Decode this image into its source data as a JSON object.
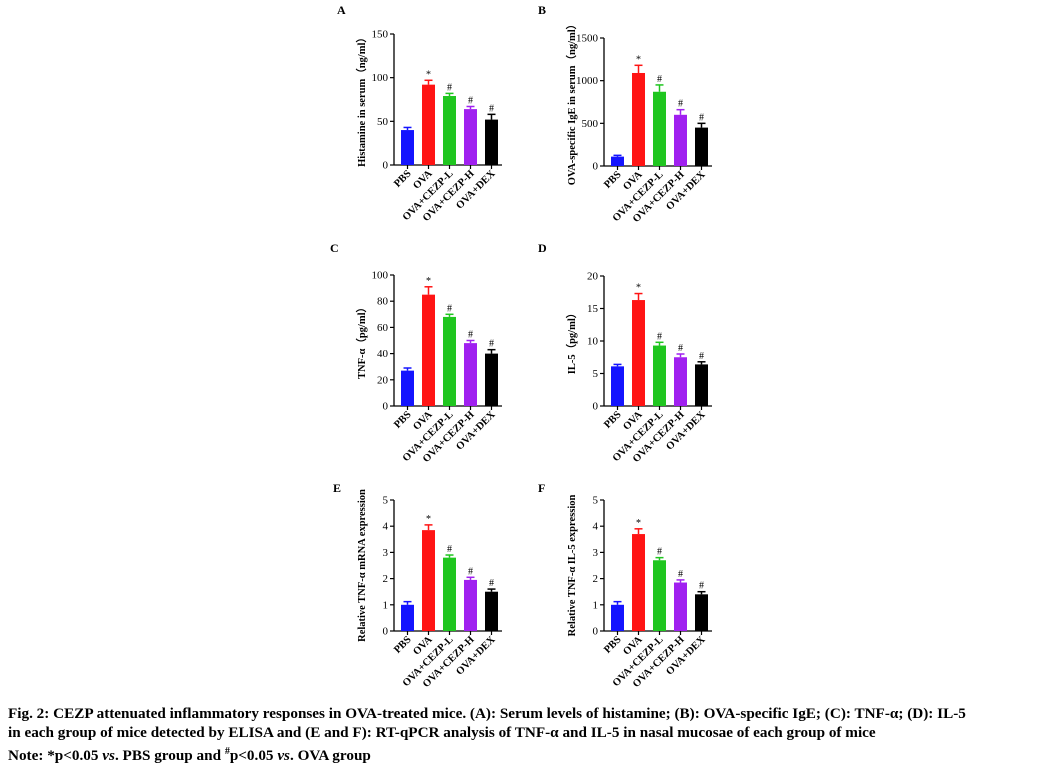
{
  "categories": [
    "PBS",
    "OVA",
    "OVA+CEZP-L",
    "OVA+CEZP-H",
    "OVA+DEX"
  ],
  "colors": [
    "#1414ff",
    "#ff1414",
    "#1fc61f",
    "#a020f0",
    "#000000"
  ],
  "chart_data": [
    {
      "panel": "A",
      "type": "bar",
      "ylabel": "Histamine in serum（ng/ml）",
      "categories": [
        "PBS",
        "OVA",
        "OVA+CEZP-L",
        "OVA+CEZP-H",
        "OVA+DEX"
      ],
      "values": [
        40,
        92,
        79,
        64,
        52
      ],
      "errors": [
        3,
        5,
        3,
        3,
        6
      ],
      "marks": [
        "",
        "*",
        "#",
        "#",
        "#"
      ],
      "ylim": [
        0,
        150
      ],
      "ticks": [
        0,
        50,
        100,
        150
      ]
    },
    {
      "panel": "B",
      "type": "bar",
      "ylabel": "OVA-specific IgE in serum（ng/ml）",
      "categories": [
        "PBS",
        "OVA",
        "OVA+CEZP-L",
        "OVA+CEZP-H",
        "OVA+DEX"
      ],
      "values": [
        110,
        1090,
        870,
        600,
        450
      ],
      "errors": [
        15,
        90,
        80,
        60,
        50
      ],
      "marks": [
        "",
        "*",
        "#",
        "#",
        "#"
      ],
      "ylim": [
        0,
        1500
      ],
      "ticks": [
        0,
        500,
        1000,
        1500
      ]
    },
    {
      "panel": "C",
      "type": "bar",
      "ylabel": "TNF-α（pg/ml）",
      "categories": [
        "PBS",
        "OVA",
        "OVA+CEZP-L",
        "OVA+CEZP-H",
        "OVA+DEX"
      ],
      "values": [
        27,
        85,
        68,
        48,
        40
      ],
      "errors": [
        2,
        6,
        2,
        2,
        3
      ],
      "marks": [
        "",
        "*",
        "#",
        "#",
        "#"
      ],
      "ylim": [
        0,
        100
      ],
      "ticks": [
        0,
        20,
        40,
        60,
        80,
        100
      ]
    },
    {
      "panel": "D",
      "type": "bar",
      "ylabel": "IL-5（pg/ml）",
      "categories": [
        "PBS",
        "OVA",
        "OVA+CEZP-L",
        "OVA+CEZP-H",
        "OVA+DEX"
      ],
      "values": [
        6.1,
        16.3,
        9.3,
        7.5,
        6.4
      ],
      "errors": [
        0.3,
        1.0,
        0.5,
        0.5,
        0.4
      ],
      "marks": [
        "",
        "*",
        "#",
        "#",
        "#"
      ],
      "ylim": [
        0,
        20
      ],
      "ticks": [
        0,
        5,
        10,
        15,
        20
      ]
    },
    {
      "panel": "E",
      "type": "bar",
      "ylabel": "Relative  TNF-α mRNA expression",
      "categories": [
        "PBS",
        "OVA",
        "OVA+CEZP-L",
        "OVA+CEZP-H",
        "OVA+DEX"
      ],
      "values": [
        1.0,
        3.85,
        2.8,
        1.95,
        1.5
      ],
      "errors": [
        0.12,
        0.2,
        0.1,
        0.1,
        0.1
      ],
      "marks": [
        "",
        "*",
        "#",
        "#",
        "#"
      ],
      "ylim": [
        0,
        5
      ],
      "ticks": [
        0,
        1,
        2,
        3,
        4,
        5
      ]
    },
    {
      "panel": "F",
      "type": "bar",
      "ylabel": "Relative TNF-α IL-5 expression",
      "categories": [
        "PBS",
        "OVA",
        "OVA+CEZP-L",
        "OVA+CEZP-H",
        "OVA+DEX"
      ],
      "values": [
        1.0,
        3.7,
        2.7,
        1.85,
        1.4
      ],
      "errors": [
        0.12,
        0.2,
        0.1,
        0.1,
        0.1
      ],
      "marks": [
        "",
        "*",
        "#",
        "#",
        "#"
      ],
      "ylim": [
        0,
        5
      ],
      "ticks": [
        0,
        1,
        2,
        3,
        4,
        5
      ]
    }
  ],
  "caption": {
    "line1": "Fig. 2: CEZP attenuated inflammatory responses in OVA-treated mice. (A): Serum levels of histamine; (B): OVA-specific IgE; (C): TNF-α; (D): IL-5",
    "line2": "in each group of mice detected by ELISA and (E and F): RT-qPCR analysis of TNF-α and IL-5 in nasal mucosae of each group of mice",
    "note_prefix": "Note: *p<0.05 ",
    "note_vs1": "vs",
    "note_mid1": ". PBS group and ",
    "note_hash": "#",
    "note_mid2": "p<0.05 ",
    "note_vs2": "vs",
    "note_end": ". OVA group"
  }
}
